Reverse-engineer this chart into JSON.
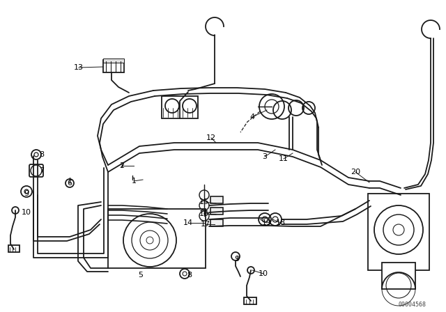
{
  "background_color": "#ffffff",
  "line_color": "#1a1a1a",
  "text_color": "#000000",
  "diagram_id": "00004568",
  "fig_width": 6.4,
  "fig_height": 4.48,
  "dpi": 100,
  "labels": [
    [
      "13",
      113,
      97
    ],
    [
      "2",
      175,
      238
    ],
    [
      "1",
      192,
      260
    ],
    [
      "12",
      303,
      198
    ],
    [
      "4",
      362,
      168
    ],
    [
      "3",
      380,
      225
    ],
    [
      "11",
      407,
      228
    ],
    [
      "20",
      510,
      247
    ],
    [
      "8",
      60,
      222
    ],
    [
      "7",
      60,
      245
    ],
    [
      "6",
      100,
      263
    ],
    [
      "9",
      38,
      278
    ],
    [
      "10",
      38,
      305
    ],
    [
      "5",
      202,
      395
    ],
    [
      "8",
      272,
      395
    ],
    [
      "9",
      340,
      372
    ],
    [
      "10",
      378,
      393
    ],
    [
      "15",
      293,
      290
    ],
    [
      "16",
      293,
      307
    ],
    [
      "14",
      270,
      320
    ],
    [
      "17",
      295,
      322
    ],
    [
      "19",
      383,
      320
    ],
    [
      "18",
      403,
      320
    ]
  ]
}
